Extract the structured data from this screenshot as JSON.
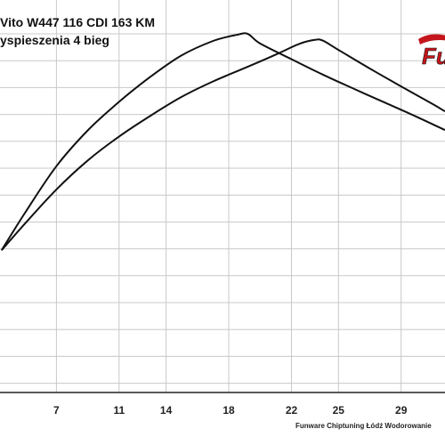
{
  "chart_data": {
    "type": "line",
    "title": "Vito W447 116 CDI 163 KM",
    "subtitle": "yspieszenia 4 bieg",
    "xlabel": "",
    "ylabel": "",
    "x_ticks": [
      7,
      11,
      14,
      18,
      22,
      25,
      29
    ],
    "xlim": [
      3.4,
      31.8
    ],
    "ylim": [
      0,
      100
    ],
    "grid": true,
    "legend": "none",
    "series": [
      {
        "color": "#111111",
        "x": [
          3.5,
          5,
          7,
          9,
          11,
          13,
          15,
          17,
          18.5,
          19.2,
          20,
          22,
          24,
          26,
          28,
          30,
          31.8
        ],
        "y": [
          39.5,
          50,
          63,
          73,
          81,
          88,
          94,
          98,
          99.7,
          100,
          97.3,
          92.9,
          88.6,
          84.6,
          80.7,
          76.8,
          73.1
        ]
      },
      {
        "color": "#111111",
        "x": [
          3.5,
          5,
          7,
          9,
          11,
          13,
          15,
          17,
          19,
          21,
          22.5,
          23.5,
          24,
          25,
          27,
          29,
          31,
          31.8
        ],
        "y": [
          39.5,
          47,
          56.5,
          64.6,
          71.3,
          77.1,
          82.4,
          86.7,
          90.4,
          94.2,
          97.2,
          98.3,
          98.1,
          95.5,
          90.3,
          85.3,
          80.4,
          78.3
        ]
      }
    ]
  },
  "logo": {
    "text": "Fu",
    "colors": {
      "swoosh": "#c4161c",
      "letters": "#c4161c",
      "outline": "#111111"
    }
  },
  "footer": {
    "text": "Funware Chiptuning Łódź Wodorowanie"
  }
}
